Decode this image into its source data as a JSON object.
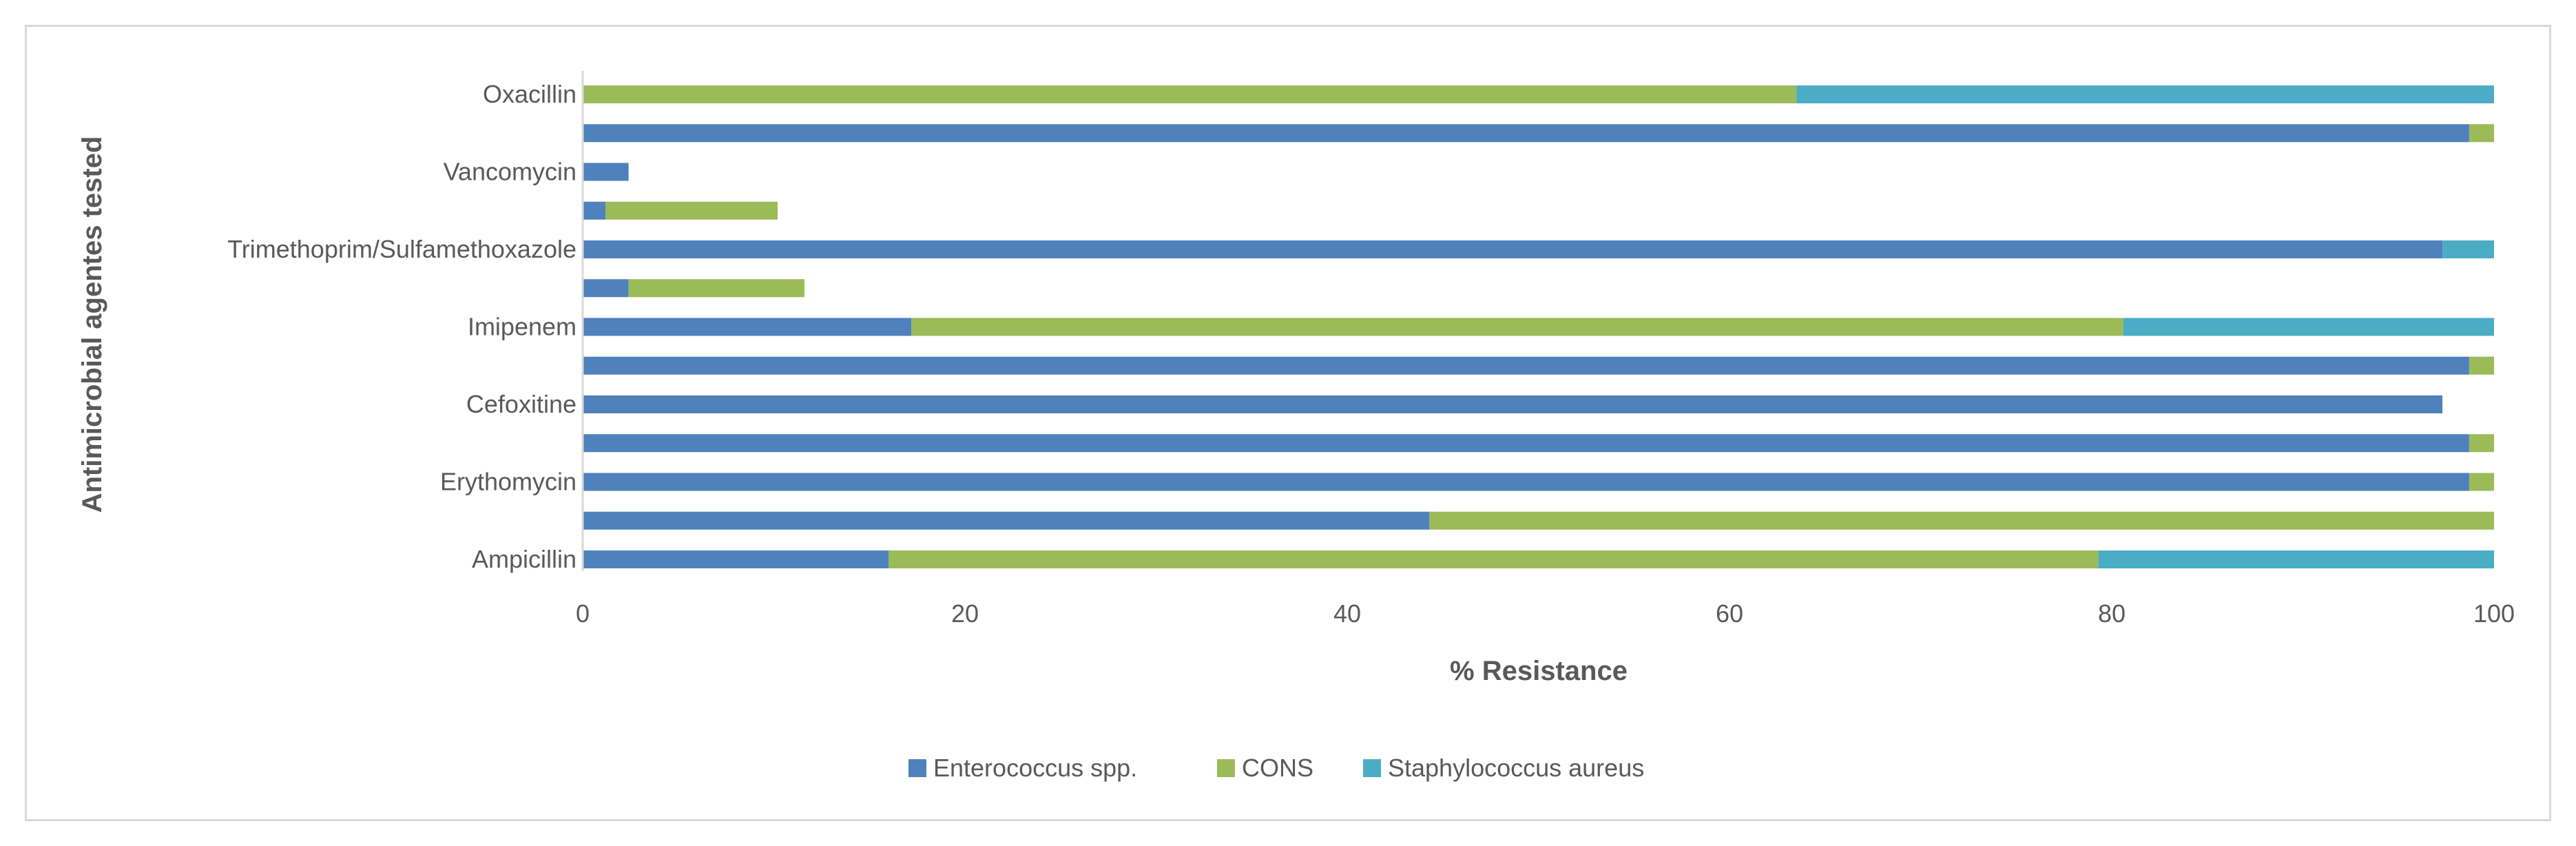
{
  "chart_data": {
    "type": "bar",
    "orientation": "horizontal",
    "stacked": true,
    "xlabel": "% Resistance",
    "ylabel": "Antimicrobial agentes tested",
    "xlim": [
      0,
      100
    ],
    "xticks": [
      0,
      20,
      40,
      60,
      80,
      100
    ],
    "grid": false,
    "legend_position": "bottom",
    "categories": [
      "Ampicillin",
      "",
      "Erythomycin",
      "",
      "Cefoxitine",
      "",
      "Imipenem",
      "",
      "Trimethoprim/Sulfamethoxazole",
      "",
      "Vancomycin",
      "",
      "Oxacillin"
    ],
    "series": [
      {
        "name": "Enterococcus spp.",
        "color": "#4f81bd",
        "values": [
          16,
          44.3,
          98.7,
          98.7,
          97.3,
          98.7,
          17.2,
          2.4,
          97.3,
          1.2,
          2.4,
          98.7,
          0
        ]
      },
      {
        "name": "CONS",
        "color": "#9bbb59",
        "values": [
          63.3,
          55.7,
          1.3,
          1.3,
          0,
          1.3,
          63.4,
          9.2,
          0,
          9,
          0,
          1.3,
          63.5
        ]
      },
      {
        "name": "Staphylococcus aureus",
        "color": "#4bacc6",
        "values": [
          20.7,
          0,
          0,
          0,
          0,
          0,
          19.4,
          0,
          2.7,
          0,
          0,
          0,
          36.5
        ]
      }
    ]
  }
}
